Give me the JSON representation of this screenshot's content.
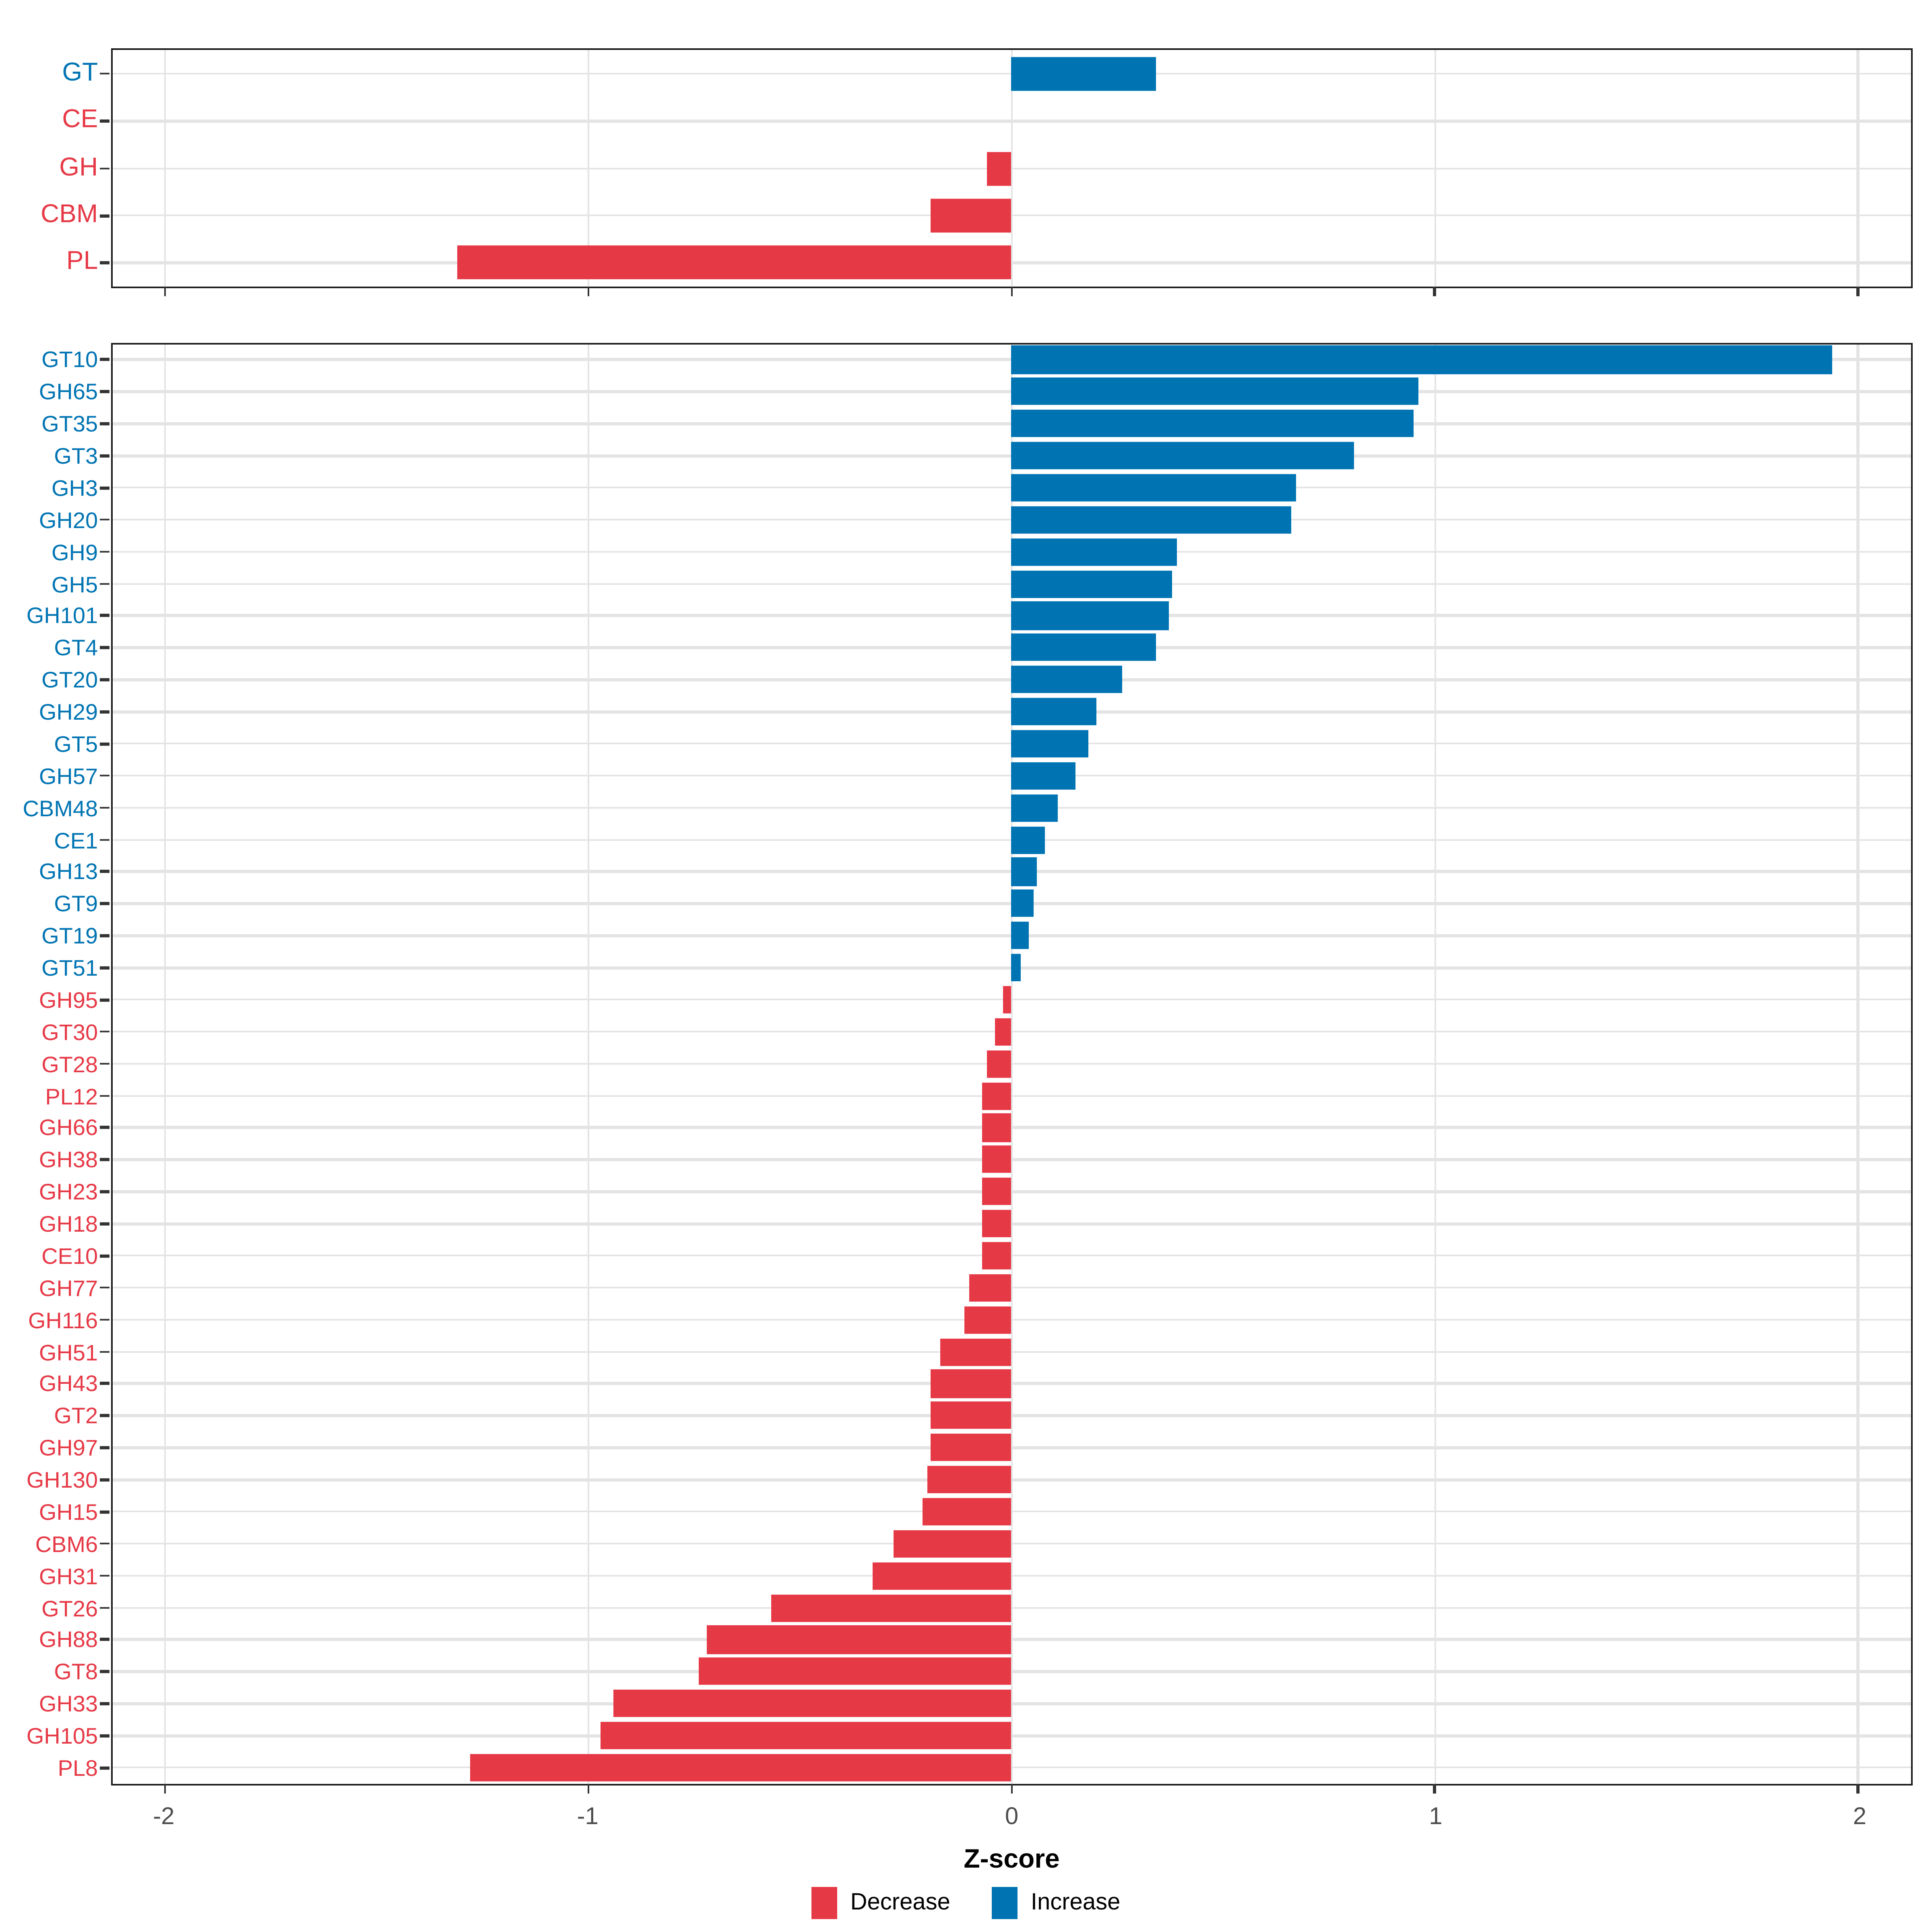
{
  "chart_data": {
    "type": "bar",
    "orientation": "horizontal",
    "title": "",
    "xlabel": "Z-score",
    "ylabel": "",
    "xlim": [
      -2.125,
      2.125
    ],
    "x_ticks": [
      -2,
      -1,
      0,
      1,
      2
    ],
    "x_tick_labels": [
      "-2",
      "-1",
      "0",
      "1",
      "2"
    ],
    "grid": "major-vertical-and-row-lines",
    "legend_position": "bottom",
    "panels": [
      {
        "name": "cazyme-class-panel",
        "rows": [
          {
            "label": "GT",
            "value": 0.34,
            "dir": "inc"
          },
          {
            "label": "CE",
            "value": 0.0,
            "dir": "dec"
          },
          {
            "label": "GH",
            "value": -0.06,
            "dir": "dec"
          },
          {
            "label": "CBM",
            "value": -0.19,
            "dir": "dec"
          },
          {
            "label": "PL",
            "value": -1.31,
            "dir": "dec"
          }
        ]
      },
      {
        "name": "cazyme-family-panel",
        "rows": [
          {
            "label": "GT10",
            "value": 1.94,
            "dir": "inc"
          },
          {
            "label": "GH65",
            "value": 0.96,
            "dir": "inc"
          },
          {
            "label": "GT35",
            "value": 0.95,
            "dir": "inc"
          },
          {
            "label": "GT3",
            "value": 0.81,
            "dir": "inc"
          },
          {
            "label": "GH3",
            "value": 0.67,
            "dir": "inc"
          },
          {
            "label": "GH20",
            "value": 0.66,
            "dir": "inc"
          },
          {
            "label": "GH9",
            "value": 0.39,
            "dir": "inc"
          },
          {
            "label": "GH5",
            "value": 0.38,
            "dir": "inc"
          },
          {
            "label": "GH101",
            "value": 0.37,
            "dir": "inc"
          },
          {
            "label": "GT4",
            "value": 0.34,
            "dir": "inc"
          },
          {
            "label": "GT20",
            "value": 0.26,
            "dir": "inc"
          },
          {
            "label": "GH29",
            "value": 0.2,
            "dir": "inc"
          },
          {
            "label": "GT5",
            "value": 0.18,
            "dir": "inc"
          },
          {
            "label": "GH57",
            "value": 0.15,
            "dir": "inc"
          },
          {
            "label": "CBM48",
            "value": 0.11,
            "dir": "inc"
          },
          {
            "label": "CE1",
            "value": 0.08,
            "dir": "inc"
          },
          {
            "label": "GH13",
            "value": 0.06,
            "dir": "inc"
          },
          {
            "label": "GT9",
            "value": 0.05,
            "dir": "inc"
          },
          {
            "label": "GT19",
            "value": 0.04,
            "dir": "inc"
          },
          {
            "label": "GT51",
            "value": 0.02,
            "dir": "inc"
          },
          {
            "label": "GH95",
            "value": -0.02,
            "dir": "dec"
          },
          {
            "label": "GT30",
            "value": -0.04,
            "dir": "dec"
          },
          {
            "label": "GT28",
            "value": -0.06,
            "dir": "dec"
          },
          {
            "label": "PL12",
            "value": -0.07,
            "dir": "dec"
          },
          {
            "label": "GH66",
            "value": -0.07,
            "dir": "dec"
          },
          {
            "label": "GH38",
            "value": -0.07,
            "dir": "dec"
          },
          {
            "label": "GH23",
            "value": -0.07,
            "dir": "dec"
          },
          {
            "label": "GH18",
            "value": -0.07,
            "dir": "dec"
          },
          {
            "label": "CE10",
            "value": -0.07,
            "dir": "dec"
          },
          {
            "label": "GH77",
            "value": -0.1,
            "dir": "dec"
          },
          {
            "label": "GH116",
            "value": -0.11,
            "dir": "dec"
          },
          {
            "label": "GH51",
            "value": -0.17,
            "dir": "dec"
          },
          {
            "label": "GH43",
            "value": -0.19,
            "dir": "dec"
          },
          {
            "label": "GT2",
            "value": -0.19,
            "dir": "dec"
          },
          {
            "label": "GH97",
            "value": -0.19,
            "dir": "dec"
          },
          {
            "label": "GH130",
            "value": -0.2,
            "dir": "dec"
          },
          {
            "label": "GH15",
            "value": -0.21,
            "dir": "dec"
          },
          {
            "label": "CBM6",
            "value": -0.28,
            "dir": "dec"
          },
          {
            "label": "GH31",
            "value": -0.33,
            "dir": "dec"
          },
          {
            "label": "GT26",
            "value": -0.57,
            "dir": "dec"
          },
          {
            "label": "GH88",
            "value": -0.72,
            "dir": "dec"
          },
          {
            "label": "GT8",
            "value": -0.74,
            "dir": "dec"
          },
          {
            "label": "GH33",
            "value": -0.94,
            "dir": "dec"
          },
          {
            "label": "GH105",
            "value": -0.97,
            "dir": "dec"
          },
          {
            "label": "PL8",
            "value": -1.28,
            "dir": "dec"
          }
        ]
      }
    ]
  },
  "axis": {
    "title": "Z-score",
    "tick_labels": [
      "-2",
      "-1",
      "0",
      "1",
      "2"
    ]
  },
  "legend": {
    "items": [
      {
        "label": "Decrease",
        "colorKey": "decrease"
      },
      {
        "label": "Increase",
        "colorKey": "increase"
      }
    ]
  },
  "colors": {
    "increase": "#0074b3",
    "decrease": "#e63946",
    "grid": "#e4e4e4",
    "axis_text": "#4d4d4d",
    "border": "#1a1a1a",
    "tick_mark": "#333333"
  }
}
